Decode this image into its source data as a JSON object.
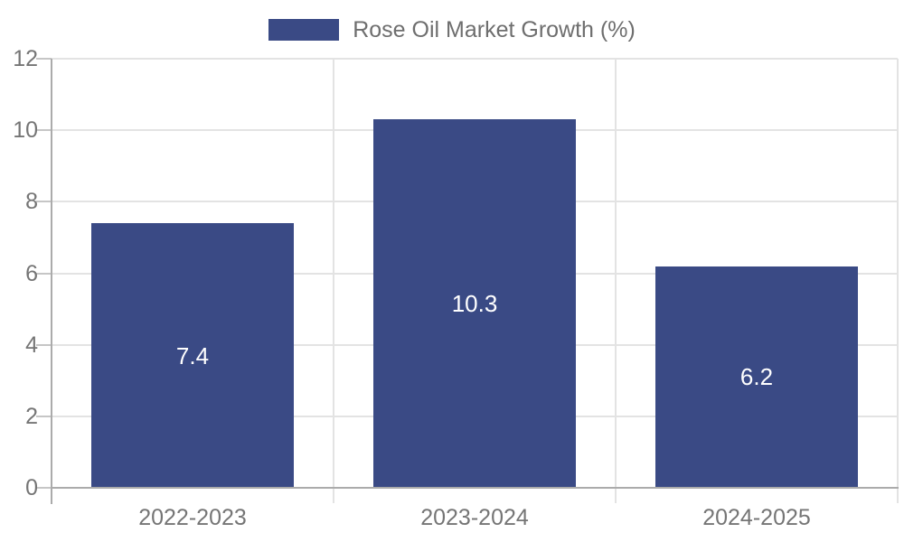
{
  "chart_data": {
    "type": "bar",
    "title": "Rose Oil Market Growth (%)",
    "legend": {
      "label": "Rose Oil Market Growth (%)",
      "position": "top-center"
    },
    "categories": [
      "2022-2023",
      "2023-2024",
      "2024-2025"
    ],
    "series": [
      {
        "name": "Rose Oil Market Growth (%)",
        "values": [
          7.4,
          10.3,
          6.2
        ]
      }
    ],
    "bar_value_labels": [
      "7.4",
      "10.3",
      "6.2"
    ],
    "xlabel": "",
    "ylabel": "",
    "ylim": [
      0,
      12
    ],
    "yticks": [
      0,
      2,
      4,
      6,
      8,
      10,
      12
    ],
    "grid": true,
    "colors": {
      "bar": "#3A4A85",
      "bar_value_text": "#FFFFFF",
      "axis_line": "#ABABAB",
      "gridline": "#E3E3E3",
      "tick_mark": "#C6C6C6",
      "tick_label_text": "#757575",
      "legend_text": "#6E6E6E",
      "background": "#FFFFFF"
    }
  }
}
